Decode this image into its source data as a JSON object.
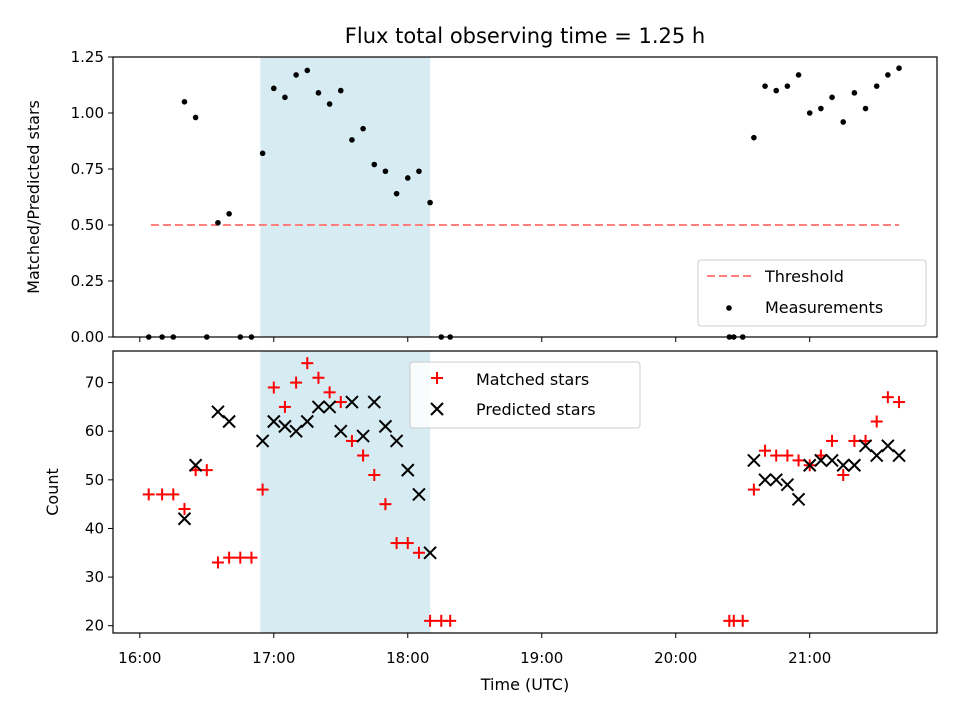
{
  "chart_data": [
    {
      "type": "scatter",
      "title": "Flux total observing time = 1.25 h",
      "ylabel": "Matched/Predicted stars",
      "xlim": [
        "15:48",
        "21:57"
      ],
      "ylim": [
        0,
        1.25
      ],
      "yticks": [
        "0.00",
        "0.25",
        "0.50",
        "0.75",
        "1.00",
        "1.25"
      ],
      "shaded_region": {
        "x_start": "16:54",
        "x_end": "18:10",
        "color": "#add8e6"
      },
      "threshold": {
        "name": "Threshold",
        "y": 0.5,
        "x_start": "16:05",
        "x_end": "21:40",
        "color": "#ff7f7f"
      },
      "series": [
        {
          "name": "Measurements",
          "color": "#000000",
          "points": [
            [
              "16:04",
              0
            ],
            [
              "16:10",
              0
            ],
            [
              "16:15",
              0
            ],
            [
              "16:20",
              1.05
            ],
            [
              "16:25",
              0.98
            ],
            [
              "16:30",
              0
            ],
            [
              "16:35",
              0.51
            ],
            [
              "16:40",
              0.55
            ],
            [
              "16:45",
              0
            ],
            [
              "16:50",
              0
            ],
            [
              "16:55",
              0.82
            ],
            [
              "17:00",
              1.11
            ],
            [
              "17:05",
              1.07
            ],
            [
              "17:10",
              1.17
            ],
            [
              "17:15",
              1.19
            ],
            [
              "17:20",
              1.09
            ],
            [
              "17:25",
              1.04
            ],
            [
              "17:30",
              1.1
            ],
            [
              "17:35",
              0.88
            ],
            [
              "17:40",
              0.93
            ],
            [
              "17:45",
              0.77
            ],
            [
              "17:50",
              0.74
            ],
            [
              "17:55",
              0.64
            ],
            [
              "18:00",
              0.71
            ],
            [
              "18:05",
              0.74
            ],
            [
              "18:10",
              0.6
            ],
            [
              "18:15",
              0
            ],
            [
              "18:19",
              0
            ],
            [
              "20:24",
              0
            ],
            [
              "20:26",
              0
            ],
            [
              "20:30",
              0
            ],
            [
              "20:35",
              0.89
            ],
            [
              "20:40",
              1.12
            ],
            [
              "20:45",
              1.1
            ],
            [
              "20:50",
              1.12
            ],
            [
              "20:55",
              1.17
            ],
            [
              "21:00",
              1.0
            ],
            [
              "21:05",
              1.02
            ],
            [
              "21:10",
              1.07
            ],
            [
              "21:15",
              0.96
            ],
            [
              "21:20",
              1.09
            ],
            [
              "21:25",
              1.02
            ],
            [
              "21:30",
              1.12
            ],
            [
              "21:35",
              1.17
            ],
            [
              "21:40",
              1.2
            ]
          ]
        }
      ],
      "legend": {
        "position": "lower-right"
      }
    },
    {
      "type": "scatter",
      "xlabel": "Time (UTC)",
      "ylabel": "Count",
      "xlim": [
        "15:48",
        "21:57"
      ],
      "ylim": [
        18.5,
        76.5
      ],
      "xticks": [
        "16:00",
        "17:00",
        "18:00",
        "19:00",
        "20:00",
        "21:00"
      ],
      "yticks": [
        "20",
        "30",
        "40",
        "50",
        "60",
        "70"
      ],
      "shaded_region": {
        "x_start": "16:54",
        "x_end": "18:10",
        "color": "#add8e6"
      },
      "series": [
        {
          "name": "Matched stars",
          "marker": "plus",
          "color": "#ff0000",
          "points": [
            [
              "16:04",
              47
            ],
            [
              "16:10",
              47
            ],
            [
              "16:15",
              47
            ],
            [
              "16:20",
              44
            ],
            [
              "16:25",
              52
            ],
            [
              "16:30",
              52
            ],
            [
              "16:35",
              33
            ],
            [
              "16:40",
              34
            ],
            [
              "16:45",
              34
            ],
            [
              "16:50",
              34
            ],
            [
              "16:55",
              48
            ],
            [
              "17:00",
              69
            ],
            [
              "17:05",
              65
            ],
            [
              "17:10",
              70
            ],
            [
              "17:15",
              74
            ],
            [
              "17:20",
              71
            ],
            [
              "17:25",
              68
            ],
            [
              "17:30",
              66
            ],
            [
              "17:35",
              58
            ],
            [
              "17:40",
              55
            ],
            [
              "17:45",
              51
            ],
            [
              "17:50",
              45
            ],
            [
              "17:55",
              37
            ],
            [
              "18:00",
              37
            ],
            [
              "18:05",
              35
            ],
            [
              "18:10",
              21
            ],
            [
              "18:15",
              21
            ],
            [
              "18:19",
              21
            ],
            [
              "20:24",
              21
            ],
            [
              "20:26",
              21
            ],
            [
              "20:30",
              21
            ],
            [
              "20:35",
              48
            ],
            [
              "20:40",
              56
            ],
            [
              "20:45",
              55
            ],
            [
              "20:50",
              55
            ],
            [
              "20:55",
              54
            ],
            [
              "21:00",
              53
            ],
            [
              "21:05",
              55
            ],
            [
              "21:10",
              58
            ],
            [
              "21:15",
              51
            ],
            [
              "21:20",
              58
            ],
            [
              "21:25",
              58
            ],
            [
              "21:30",
              62
            ],
            [
              "21:35",
              67
            ],
            [
              "21:40",
              66
            ]
          ]
        },
        {
          "name": "Predicted stars",
          "marker": "x",
          "color": "#000000",
          "points": [
            [
              "16:20",
              42
            ],
            [
              "16:25",
              53
            ],
            [
              "16:35",
              64
            ],
            [
              "16:40",
              62
            ],
            [
              "16:55",
              58
            ],
            [
              "17:00",
              62
            ],
            [
              "17:05",
              61
            ],
            [
              "17:10",
              60
            ],
            [
              "17:15",
              62
            ],
            [
              "17:20",
              65
            ],
            [
              "17:25",
              65
            ],
            [
              "17:30",
              60
            ],
            [
              "17:35",
              66
            ],
            [
              "17:40",
              59
            ],
            [
              "17:45",
              66
            ],
            [
              "17:50",
              61
            ],
            [
              "17:55",
              58
            ],
            [
              "18:00",
              52
            ],
            [
              "18:05",
              47
            ],
            [
              "18:10",
              35
            ],
            [
              "20:35",
              54
            ],
            [
              "20:40",
              50
            ],
            [
              "20:45",
              50
            ],
            [
              "20:50",
              49
            ],
            [
              "20:55",
              46
            ],
            [
              "21:00",
              53
            ],
            [
              "21:05",
              54
            ],
            [
              "21:10",
              54
            ],
            [
              "21:15",
              53
            ],
            [
              "21:20",
              53
            ],
            [
              "21:25",
              57
            ],
            [
              "21:30",
              55
            ],
            [
              "21:35",
              57
            ],
            [
              "21:40",
              55
            ]
          ]
        }
      ],
      "legend": {
        "position": "top-center"
      }
    }
  ]
}
